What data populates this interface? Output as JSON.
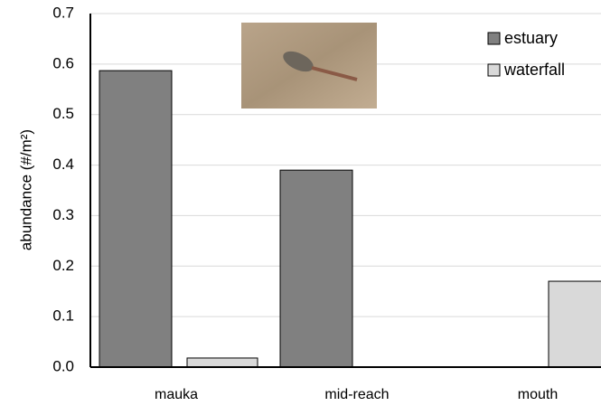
{
  "chart_data": {
    "type": "bar",
    "y_label": "abundance (#/m²)",
    "categories": [
      "mauka",
      "mid-reach",
      "mouth"
    ],
    "series": [
      {
        "name": "estuary",
        "color": "#808080",
        "values": [
          0.587,
          0.39,
          0
        ]
      },
      {
        "name": "waterfall",
        "color": "#d9d9d9",
        "values": [
          0.018,
          0,
          0.17
        ]
      }
    ],
    "ylim": [
      0,
      0.7
    ],
    "yticks": [
      {
        "value": 0,
        "label": "0.0"
      },
      0.1,
      0.2,
      0.3,
      0.4,
      0.5,
      0.6,
      0.7
    ],
    "grid": true,
    "legend": "top-right"
  }
}
